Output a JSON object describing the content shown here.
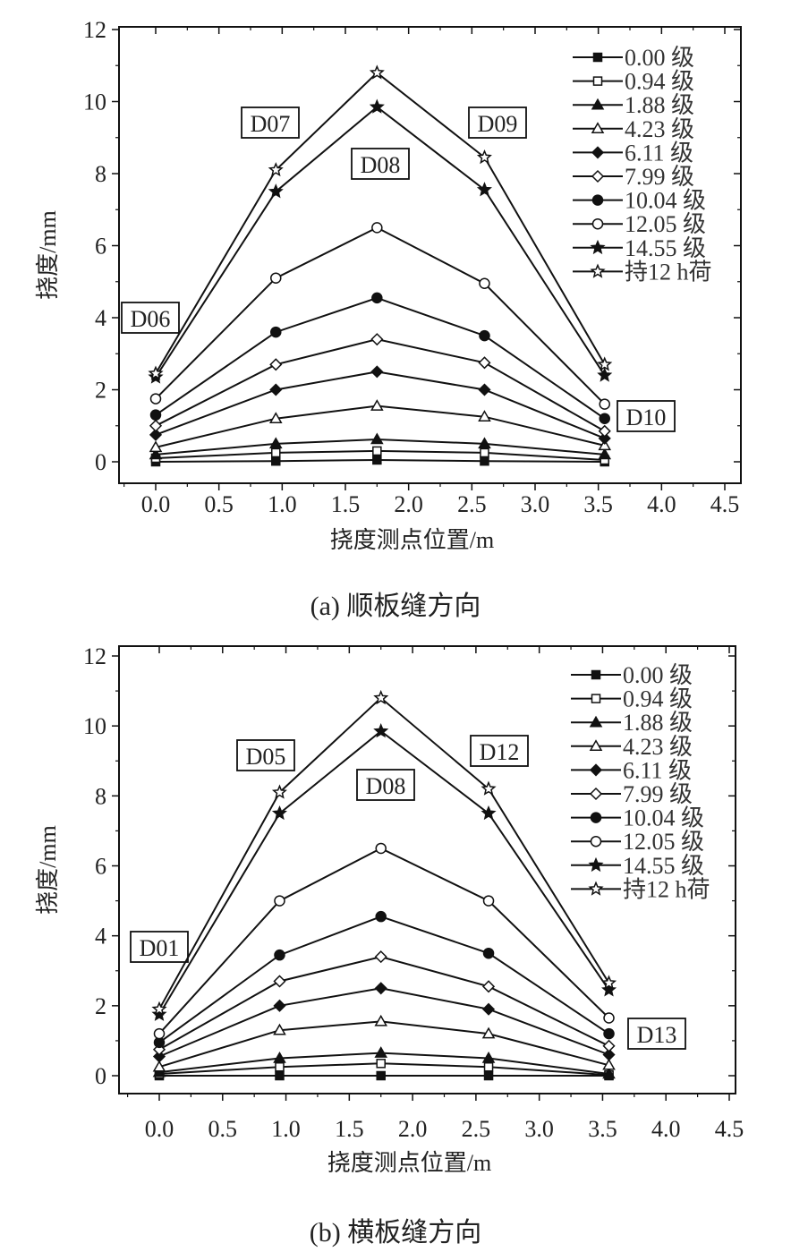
{
  "chart_data": [
    {
      "type": "line",
      "caption": "(a)  顺板缝方向",
      "xlabel": "挠度测点位置/m",
      "ylabel": "挠度/mm",
      "xlim": [
        -0.3,
        4.6
      ],
      "ylim": [
        -0.5,
        12
      ],
      "xticks": [
        "0.0",
        "0.5",
        "1.0",
        "1.5",
        "2.0",
        "2.5",
        "3.0",
        "3.5",
        "4.0",
        "4.5"
      ],
      "yticks": [
        "0",
        "2",
        "4",
        "6",
        "8",
        "10",
        "12"
      ],
      "x": [
        0,
        0.95,
        1.75,
        2.6,
        3.55
      ],
      "point_labels": [
        "D06",
        "D07",
        "D08",
        "D09",
        "D10"
      ],
      "legend_position": "top-right",
      "series": [
        {
          "name": "0.00 级",
          "marker": "square-filled",
          "values": [
            0,
            0.02,
            0.05,
            0.02,
            0
          ]
        },
        {
          "name": "0.94 级",
          "marker": "square-open",
          "values": [
            0.1,
            0.25,
            0.3,
            0.25,
            0.05
          ]
        },
        {
          "name": "1.88 级",
          "marker": "triangle-filled",
          "values": [
            0.2,
            0.5,
            0.62,
            0.5,
            0.2
          ]
        },
        {
          "name": "4.23 级",
          "marker": "triangle-open",
          "values": [
            0.4,
            1.2,
            1.55,
            1.25,
            0.45
          ]
        },
        {
          "name": "6.11 级",
          "marker": "diamond-filled",
          "values": [
            0.75,
            2.0,
            2.5,
            2.0,
            0.65
          ]
        },
        {
          "name": "7.99 级",
          "marker": "diamond-open",
          "values": [
            1.0,
            2.7,
            3.4,
            2.75,
            0.85
          ]
        },
        {
          "name": "10.04 级",
          "marker": "circle-filled",
          "values": [
            1.3,
            3.6,
            4.55,
            3.5,
            1.2
          ]
        },
        {
          "name": "12.05 级",
          "marker": "circle-open",
          "values": [
            1.75,
            5.1,
            6.5,
            4.95,
            1.6
          ]
        },
        {
          "name": "14.55 级",
          "marker": "star-filled",
          "values": [
            2.35,
            7.5,
            9.85,
            7.55,
            2.4
          ]
        },
        {
          "name": "持12 h荷",
          "marker": "star-open",
          "values": [
            2.45,
            8.1,
            10.8,
            8.45,
            2.7
          ]
        }
      ]
    },
    {
      "type": "line",
      "caption": "(b)  横板缝方向",
      "xlabel": "挠度测点位置/m",
      "ylabel": "挠度/mm",
      "xlim": [
        -0.3,
        4.6
      ],
      "ylim": [
        -0.5,
        12
      ],
      "xticks": [
        "0.0",
        "0.5",
        "1.0",
        "1.5",
        "2.0",
        "2.5",
        "3.0",
        "3.5",
        "4.0",
        "4.5"
      ],
      "yticks": [
        "0",
        "2",
        "4",
        "6",
        "8",
        "10",
        "12"
      ],
      "x": [
        0,
        0.95,
        1.75,
        2.6,
        3.55
      ],
      "point_labels": [
        "D01",
        "D05",
        "D08",
        "D12",
        "D13"
      ],
      "legend_position": "top-right",
      "series": [
        {
          "name": "0.00 级",
          "marker": "square-filled",
          "values": [
            0,
            0,
            0,
            0,
            0
          ]
        },
        {
          "name": "0.94 级",
          "marker": "square-open",
          "values": [
            0.05,
            0.25,
            0.35,
            0.25,
            0.02
          ]
        },
        {
          "name": "1.88 级",
          "marker": "triangle-filled",
          "values": [
            0.1,
            0.5,
            0.65,
            0.5,
            0.05
          ]
        },
        {
          "name": "4.23 级",
          "marker": "triangle-open",
          "values": [
            0.25,
            1.3,
            1.55,
            1.2,
            0.3
          ]
        },
        {
          "name": "6.11 级",
          "marker": "diamond-filled",
          "values": [
            0.55,
            2.0,
            2.5,
            1.9,
            0.6
          ]
        },
        {
          "name": "7.99 级",
          "marker": "diamond-open",
          "values": [
            0.75,
            2.7,
            3.4,
            2.55,
            0.85
          ]
        },
        {
          "name": "10.04 级",
          "marker": "circle-filled",
          "values": [
            0.95,
            3.45,
            4.55,
            3.5,
            1.2
          ]
        },
        {
          "name": "12.05 级",
          "marker": "circle-open",
          "values": [
            1.2,
            5.0,
            6.5,
            5.0,
            1.65
          ]
        },
        {
          "name": "14.55 级",
          "marker": "star-filled",
          "values": [
            1.75,
            7.5,
            9.85,
            7.5,
            2.45
          ]
        },
        {
          "name": "持12 h荷",
          "marker": "star-open",
          "values": [
            1.9,
            8.1,
            10.8,
            8.2,
            2.65
          ]
        }
      ]
    }
  ]
}
